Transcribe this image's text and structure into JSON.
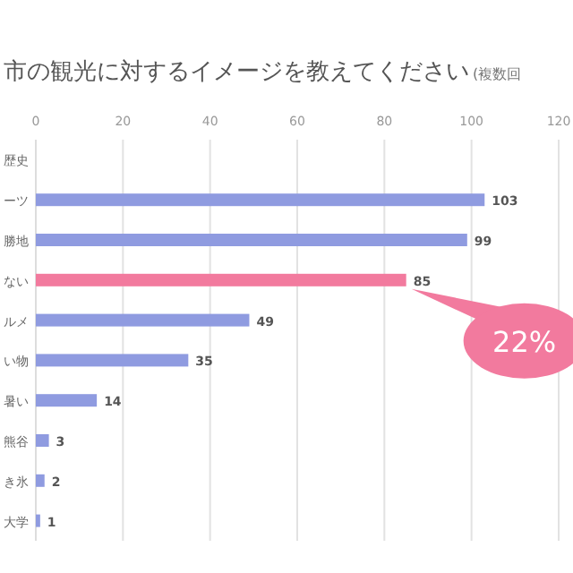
{
  "chart_data": {
    "type": "bar",
    "orientation": "horizontal",
    "title": "市の観光に対するイメージを教えてください",
    "subtitle": "(複数回",
    "categories": [
      "歴史",
      "ーツ",
      "勝地",
      "ない",
      "ルメ",
      "い物",
      "暑い",
      "熊谷",
      "き氷",
      "大学"
    ],
    "values": [
      null,
      103,
      99,
      85,
      49,
      35,
      14,
      3,
      2,
      1
    ],
    "colors": [
      null,
      "#8f9be0",
      "#8f9be0",
      "#f27a9e",
      "#8f9be0",
      "#8f9be0",
      "#8f9be0",
      "#8f9be0",
      "#8f9be0",
      "#8f9be0"
    ],
    "xlim": [
      0,
      120
    ],
    "xticks": [
      0,
      20,
      40,
      60,
      80,
      100,
      120
    ],
    "grid": "x",
    "data_labels": true,
    "annotations": [
      {
        "text": "22%",
        "x": 85,
        "y": "ない"
      }
    ]
  }
}
